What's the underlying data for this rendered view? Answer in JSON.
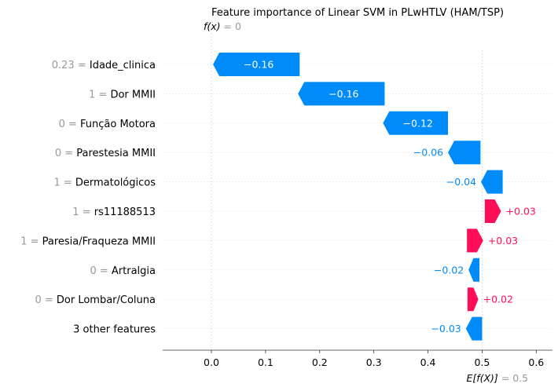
{
  "chart_data": {
    "type": "waterfall",
    "title": "Feature importance of Linear SVM in PLwHTLV (HAM/TSP)",
    "fx_label": "f(x)",
    "fx_value_text": "= 0",
    "base_label": "E[f(X)]",
    "base_value_text": "= 0.5",
    "base_value": 0.5,
    "final_value": 0.0,
    "xlim": [
      -0.09,
      0.63
    ],
    "xticks": [
      "0.0",
      "0.1",
      "0.2",
      "0.3",
      "0.4",
      "0.5",
      "0.6"
    ],
    "colors": {
      "positive": "#ff0d57",
      "negative": "#008bfb",
      "axis": "#333333",
      "grid": "#cccccc",
      "feature_value": "#999999"
    },
    "features": [
      {
        "value_text": "0.23",
        "name": "Idade_clinica",
        "contribution": -0.16,
        "label": "−0.16",
        "start": 0.163
      },
      {
        "value_text": "1",
        "name": "Dor MMII",
        "contribution": -0.16,
        "label": "−0.16",
        "start": 0.32
      },
      {
        "value_text": "0",
        "name": "Função Motora",
        "contribution": -0.12,
        "label": "−0.12",
        "start": 0.437
      },
      {
        "value_text": "0",
        "name": "Parestesia MMII",
        "contribution": -0.06,
        "label": "−0.06",
        "start": 0.497
      },
      {
        "value_text": "1",
        "name": "Dermatológicos",
        "contribution": -0.04,
        "label": "−0.04",
        "start": 0.538
      },
      {
        "value_text": "1",
        "name": "rs11188513",
        "contribution": 0.03,
        "label": "+0.03",
        "start": 0.505
      },
      {
        "value_text": "1",
        "name": "Paresia/Fraqueza MMII",
        "contribution": 0.03,
        "label": "+0.03",
        "start": 0.472
      },
      {
        "value_text": "0",
        "name": "Artralgia",
        "contribution": -0.02,
        "label": "−0.02",
        "start": 0.495
      },
      {
        "value_text": "0",
        "name": "Dor Lombar/Coluna",
        "contribution": 0.02,
        "label": "+0.02",
        "start": 0.473
      },
      {
        "value_text": "",
        "name": "3 other features",
        "contribution": -0.03,
        "label": "−0.03",
        "start": 0.5
      }
    ]
  }
}
